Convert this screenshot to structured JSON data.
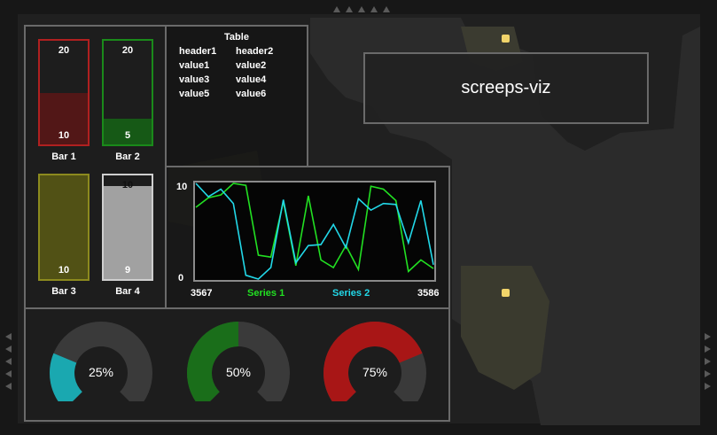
{
  "title": "screeps-viz",
  "bars": [
    {
      "label": "Bar 1",
      "value": 10,
      "max": 20,
      "color": "#b02020",
      "fill": "rgba(110,20,20,0.65)"
    },
    {
      "label": "Bar 2",
      "value": 5,
      "max": 20,
      "color": "#1a8a1a",
      "fill": "rgba(20,110,20,0.75)"
    },
    {
      "label": "Bar 3",
      "value": 10,
      "max": 10,
      "color": "#8c8a1e",
      "fill": "rgba(95,95,20,0.8)"
    },
    {
      "label": "Bar 4",
      "value": 9,
      "max": 10,
      "color": "#cfcfcf",
      "fill": "rgba(185,185,185,0.85)"
    }
  ],
  "table": {
    "title": "Table",
    "headers": [
      "header1",
      "header2"
    ],
    "rows": [
      [
        "value1",
        "value2"
      ],
      [
        "value3",
        "value4"
      ],
      [
        "value5",
        "value6"
      ]
    ]
  },
  "chart_data": {
    "type": "line",
    "x_range": [
      3567,
      3586
    ],
    "ylim": [
      0,
      10
    ],
    "xtick_labels": [
      "3567",
      "3586"
    ],
    "ytick_labels": [
      "10",
      "0"
    ],
    "series": [
      {
        "name": "Series 1",
        "color": "#22e022",
        "values": [
          7.5,
          8.5,
          8.8,
          10.2,
          9.8,
          2.5,
          2.3,
          8.1,
          1.4,
          8.7,
          2.0,
          1.2,
          3.5,
          1.0,
          9.7,
          9.4,
          8.2,
          0.8,
          2.0,
          1.1
        ]
      },
      {
        "name": "Series 2",
        "color": "#22d8e8",
        "values": [
          10.0,
          8.6,
          9.4,
          7.9,
          0.4,
          0.0,
          1.2,
          8.3,
          1.7,
          3.5,
          3.6,
          5.7,
          3.3,
          8.4,
          7.2,
          7.9,
          7.8,
          3.8,
          8.2,
          1.5
        ]
      }
    ]
  },
  "gauges": [
    {
      "value": 25,
      "label": "25%",
      "color": "#1aa8b0"
    },
    {
      "value": 50,
      "label": "50%",
      "color": "#1a6e1a"
    },
    {
      "value": 75,
      "label": "75%",
      "color": "#a81616"
    }
  ]
}
